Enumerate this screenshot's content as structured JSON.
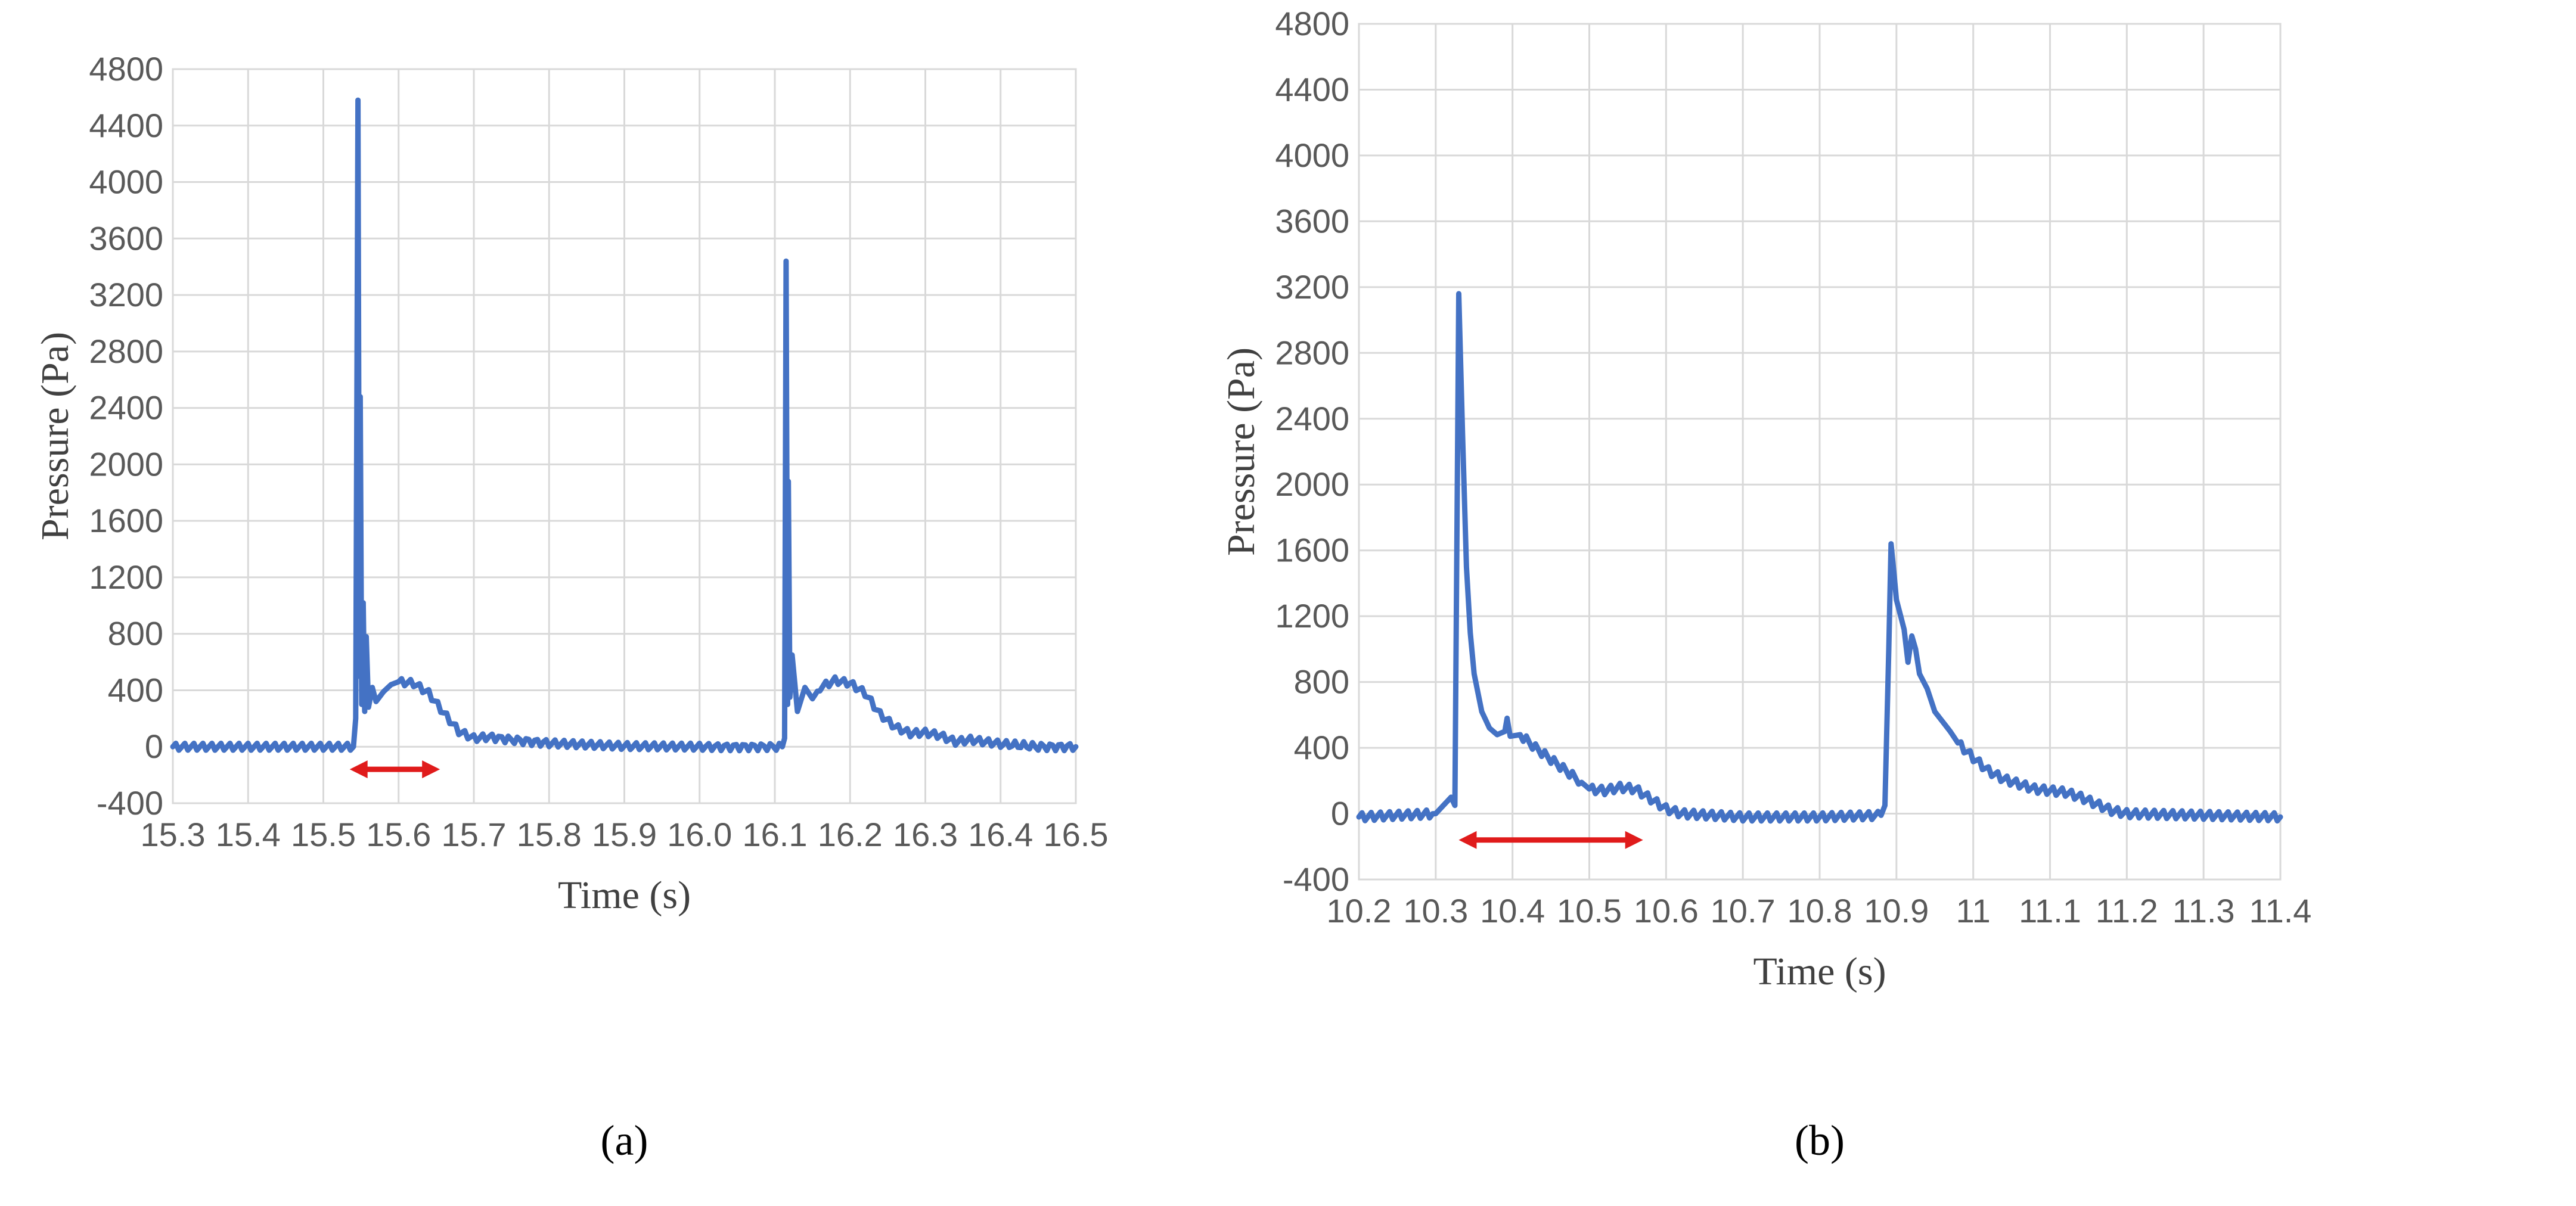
{
  "chart_data": [
    {
      "type": "line",
      "panel_label": "(a)",
      "xlabel": "Time (s)",
      "ylabel": "Pressure (Pa)",
      "xlim": [
        15.3,
        16.5
      ],
      "ylim": [
        -400,
        4800
      ],
      "x_ticks": [
        "15.3",
        "15.4",
        "15.5",
        "15.6",
        "15.7",
        "15.8",
        "15.9",
        "16.0",
        "16.1",
        "16.2",
        "16.3",
        "16.4",
        "16.5"
      ],
      "y_ticks": [
        "-400",
        "0",
        "400",
        "800",
        "1200",
        "1600",
        "2000",
        "2400",
        "2800",
        "3200",
        "3600",
        "4000",
        "4400",
        "4800"
      ],
      "grid": true,
      "color": "#4472c4",
      "arrow": {
        "x_start": 15.535,
        "x_end": 15.655,
        "y": -160,
        "color": "#e01b1b"
      },
      "series": [
        {
          "points": [
            [
              15.3,
              0
            ],
            [
              15.54,
              0
            ],
            [
              15.543,
              200
            ],
            [
              15.546,
              4580
            ],
            [
              15.548,
              500
            ],
            [
              15.549,
              2480
            ],
            [
              15.551,
              300
            ],
            [
              15.553,
              1020
            ],
            [
              15.555,
              250
            ],
            [
              15.557,
              780
            ],
            [
              15.56,
              280
            ],
            [
              15.565,
              420
            ],
            [
              15.57,
              320
            ],
            [
              15.58,
              390
            ],
            [
              15.59,
              440
            ],
            [
              15.6,
              460
            ],
            [
              15.62,
              450
            ],
            [
              15.64,
              380
            ],
            [
              15.66,
              240
            ],
            [
              15.68,
              110
            ],
            [
              15.7,
              60
            ],
            [
              15.72,
              70
            ],
            [
              15.75,
              50
            ],
            [
              15.8,
              25
            ],
            [
              15.9,
              5
            ],
            [
              16.0,
              0
            ],
            [
              16.11,
              0
            ],
            [
              16.113,
              60
            ],
            [
              16.115,
              3440
            ],
            [
              16.117,
              300
            ],
            [
              16.118,
              1880
            ],
            [
              16.12,
              350
            ],
            [
              16.123,
              650
            ],
            [
              16.13,
              250
            ],
            [
              16.14,
              420
            ],
            [
              16.15,
              340
            ],
            [
              16.16,
              420
            ],
            [
              16.18,
              470
            ],
            [
              16.2,
              450
            ],
            [
              16.22,
              380
            ],
            [
              16.24,
              230
            ],
            [
              16.26,
              140
            ],
            [
              16.28,
              95
            ],
            [
              16.3,
              100
            ],
            [
              16.32,
              80
            ],
            [
              16.34,
              35
            ],
            [
              16.36,
              50
            ],
            [
              16.4,
              20
            ],
            [
              16.45,
              0
            ],
            [
              16.5,
              0
            ]
          ]
        }
      ]
    },
    {
      "type": "line",
      "panel_label": "(b)",
      "xlabel": "Time (s)",
      "ylabel": "Pressure (Pa)",
      "xlim": [
        10.2,
        11.4
      ],
      "ylim": [
        -400,
        4800
      ],
      "x_ticks": [
        "10.2",
        "10.3",
        "10.4",
        "10.5",
        "10.6",
        "10.7",
        "10.8",
        "10.9",
        "11",
        "11.1",
        "11.2",
        "11.3",
        "11.4"
      ],
      "y_ticks": [
        "-400",
        "0",
        "400",
        "800",
        "1200",
        "1600",
        "2000",
        "2400",
        "2800",
        "3200",
        "3600",
        "4000",
        "4400",
        "4800"
      ],
      "grid": true,
      "color": "#4472c4",
      "arrow": {
        "x_start": 10.33,
        "x_end": 10.57,
        "y": -160,
        "color": "#e01b1b"
      },
      "series": [
        {
          "points": [
            [
              10.2,
              -20
            ],
            [
              10.3,
              0
            ],
            [
              10.31,
              50
            ],
            [
              10.32,
              100
            ],
            [
              10.325,
              50
            ],
            [
              10.33,
              3160
            ],
            [
              10.335,
              2300
            ],
            [
              10.34,
              1500
            ],
            [
              10.345,
              1100
            ],
            [
              10.35,
              850
            ],
            [
              10.36,
              620
            ],
            [
              10.37,
              520
            ],
            [
              10.38,
              480
            ],
            [
              10.39,
              500
            ],
            [
              10.393,
              580
            ],
            [
              10.397,
              470
            ],
            [
              10.41,
              480
            ],
            [
              10.43,
              400
            ],
            [
              10.45,
              330
            ],
            [
              10.47,
              260
            ],
            [
              10.49,
              190
            ],
            [
              10.5,
              150
            ],
            [
              10.52,
              140
            ],
            [
              10.54,
              160
            ],
            [
              10.56,
              150
            ],
            [
              10.58,
              90
            ],
            [
              10.6,
              30
            ],
            [
              10.62,
              0
            ],
            [
              10.7,
              -20
            ],
            [
              10.8,
              -20
            ],
            [
              10.88,
              -10
            ],
            [
              10.885,
              50
            ],
            [
              10.89,
              1000
            ],
            [
              10.893,
              1640
            ],
            [
              10.897,
              1450
            ],
            [
              10.9,
              1300
            ],
            [
              10.91,
              1120
            ],
            [
              10.915,
              920
            ],
            [
              10.92,
              1080
            ],
            [
              10.925,
              1000
            ],
            [
              10.93,
              850
            ],
            [
              10.94,
              760
            ],
            [
              10.95,
              620
            ],
            [
              10.96,
              560
            ],
            [
              10.97,
              500
            ],
            [
              10.98,
              430
            ],
            [
              11.0,
              340
            ],
            [
              11.02,
              260
            ],
            [
              11.04,
              210
            ],
            [
              11.06,
              180
            ],
            [
              11.08,
              150
            ],
            [
              11.1,
              140
            ],
            [
              11.12,
              130
            ],
            [
              11.14,
              100
            ],
            [
              11.16,
              60
            ],
            [
              11.18,
              20
            ],
            [
              11.2,
              0
            ],
            [
              11.3,
              -10
            ],
            [
              11.4,
              -20
            ]
          ]
        }
      ]
    }
  ]
}
